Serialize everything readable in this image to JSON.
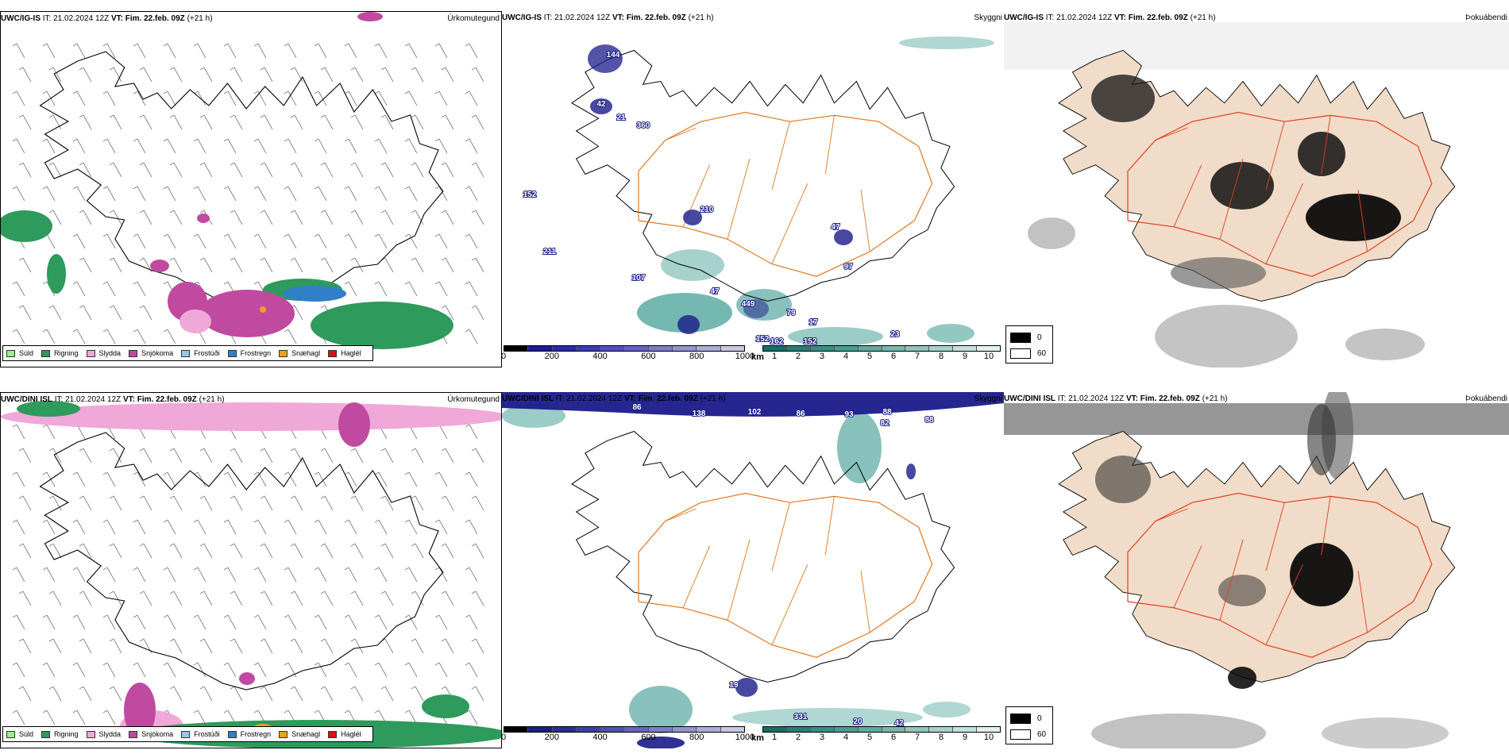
{
  "colors": {
    "sudd": "#98f08a",
    "rigning": "#2e9a5c",
    "slydda": "#f0a8d8",
    "snjokoma": "#c04aa0",
    "frostudi": "#90c8f0",
    "frostregn": "#3080c8",
    "snjaehagl": "#f0a020",
    "hagl": "#e01010",
    "road": "#e07820",
    "road_red": "#e04020",
    "land_vis": "#f0dcc8",
    "cloud_dark": "#1a1a8a",
    "cloud_teal": "#3a9a90"
  },
  "rows": [
    {
      "model": "UWC/IG-IS",
      "it": "IT: 21.02.2024 12Z",
      "vt_label": "VT:",
      "vt": "Fim. 22.feb. 09Z",
      "lead": "(+21 h)",
      "p1_right": "Úrkomutegund",
      "p2_right": "Skyggni",
      "p3_right": "Þokuábendi",
      "cloud_labels": [
        "144",
        "42",
        "21",
        "360",
        "152",
        "210",
        "211",
        "107",
        "47",
        "449",
        "79",
        "152",
        "152",
        "162",
        "47",
        "97",
        "17",
        "23"
      ]
    },
    {
      "model": "UWC/DINI ISL",
      "it": "IT: 21.02.2024 12Z",
      "vt_label": "VT:",
      "vt": "Fim. 22.feb. 09Z",
      "lead": "(+21 h)",
      "p1_right": "Úrkomutegund",
      "p2_right": "Skyggni",
      "p3_right": "Þokuábendi",
      "cloud_labels": [
        "86",
        "138",
        "102",
        "86",
        "93",
        "88",
        "82",
        "88",
        "19",
        "331",
        "20",
        "42"
      ]
    }
  ],
  "precip_legend": [
    {
      "label": "Súld",
      "color": "#98f08a"
    },
    {
      "label": "Rigning",
      "color": "#2e9a5c"
    },
    {
      "label": "Slydda",
      "color": "#f0a8d8"
    },
    {
      "label": "Snjókoma",
      "color": "#c04aa0"
    },
    {
      "label": "Frostúði",
      "color": "#90c8f0"
    },
    {
      "label": "Frostregn",
      "color": "#3080c8"
    },
    {
      "label": "Snæhagl",
      "color": "#f0a020"
    },
    {
      "label": "Haglél",
      "color": "#e01010"
    }
  ],
  "cloud_base_bar": {
    "unit": "m",
    "ticks": [
      "0",
      "200",
      "400",
      "600",
      "800",
      "1000"
    ],
    "colors": [
      "#000000",
      "#1c1c8c",
      "#2a2aa0",
      "#3c3cb0",
      "#5050b8",
      "#6464c0",
      "#7c7cc8",
      "#9494d0",
      "#acacd8",
      "#c8c8e4"
    ]
  },
  "visibility_bar": {
    "unit": "km",
    "ticks": [
      "1",
      "2",
      "3",
      "4",
      "5",
      "6",
      "7",
      "8",
      "9",
      "10"
    ],
    "colors": [
      "#1c6c64",
      "#2a7c74",
      "#3a8c84",
      "#4e9a92",
      "#62a8a0",
      "#78b6ae",
      "#90c4bc",
      "#a8d2cc",
      "#c4e2dc",
      "#e2f0ee"
    ]
  },
  "fog_legend": [
    {
      "label": "0",
      "color": "#000000"
    },
    {
      "label": "60",
      "color": "#ffffff"
    }
  ]
}
